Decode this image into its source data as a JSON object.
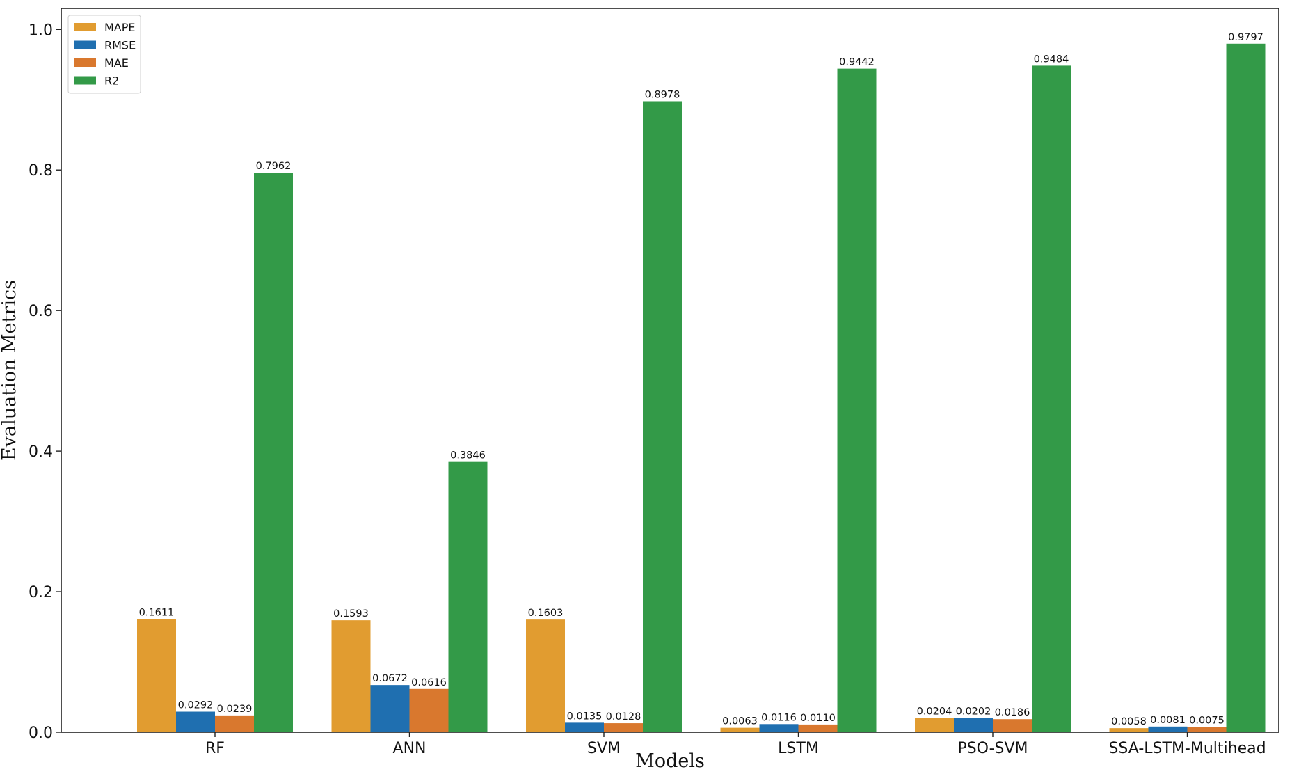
{
  "chart_data": {
    "type": "bar",
    "title": "",
    "xlabel": "Models",
    "ylabel": "Evaluation Metrics",
    "ylim": [
      0,
      1.03
    ],
    "yticks": [
      0.0,
      0.2,
      0.4,
      0.6,
      0.8,
      1.0
    ],
    "grid": false,
    "legend_position": "top-left",
    "categories": [
      "RF",
      "ANN",
      "SVM",
      "LSTM",
      "PSO-SVM",
      "SSA-LSTM-Multihead"
    ],
    "series": [
      {
        "name": "MAPE",
        "color": "#E19C30",
        "values": [
          0.1611,
          0.1593,
          0.1603,
          0.0063,
          0.0204,
          0.0058
        ]
      },
      {
        "name": "RMSE",
        "color": "#1F6FB0",
        "values": [
          0.0292,
          0.0672,
          0.0135,
          0.0116,
          0.0202,
          0.0081
        ]
      },
      {
        "name": "MAE",
        "color": "#D9782E",
        "values": [
          0.0239,
          0.0616,
          0.0128,
          0.011,
          0.0186,
          0.0075
        ]
      },
      {
        "name": "R2",
        "color": "#339A48",
        "values": [
          0.7962,
          0.3846,
          0.8978,
          0.9442,
          0.9484,
          0.9797
        ]
      }
    ]
  }
}
